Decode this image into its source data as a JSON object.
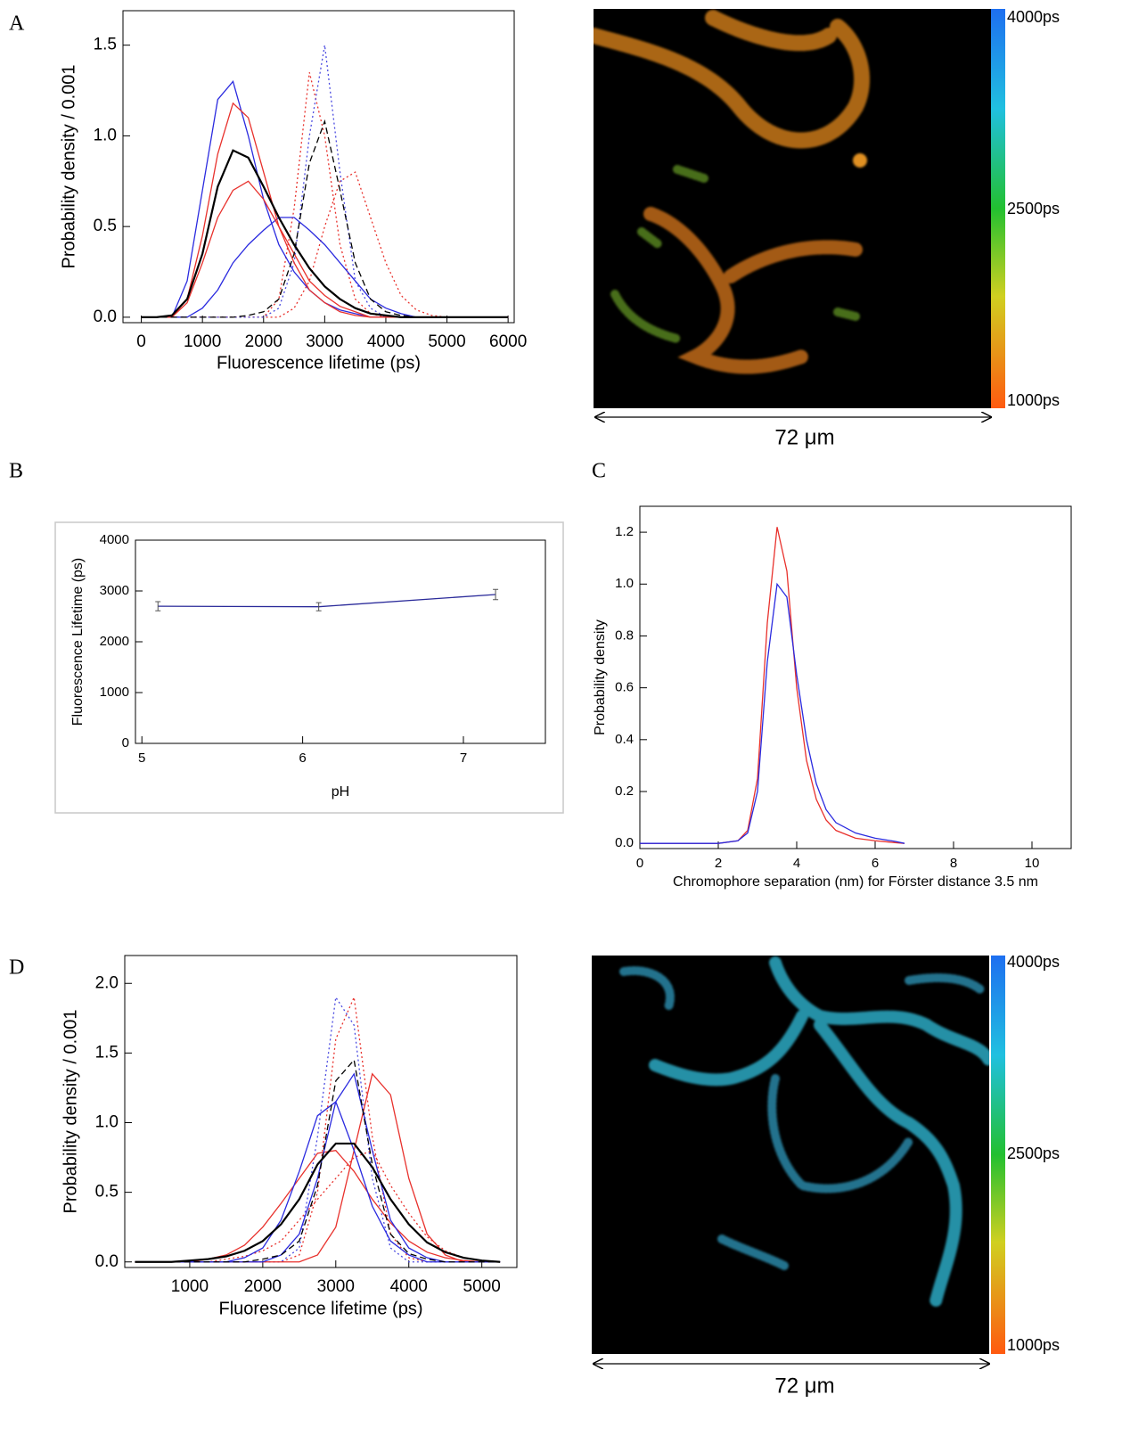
{
  "panel_labels": [
    "A",
    "B",
    "C",
    "D"
  ],
  "chart_data": [
    {
      "type": "line",
      "xlabel": "Fluorescence lifetime (ps)",
      "ylabel": "Probability density / 0.001",
      "xlim": [
        -300,
        6100
      ],
      "ylim": [
        -0.03,
        1.69
      ],
      "xticks": [
        0,
        1000,
        2000,
        3000,
        4000,
        5000,
        6000
      ],
      "yticks": [
        {
          "value": 0,
          "label": "0.0"
        },
        {
          "value": 0.5,
          "label": "0.5"
        },
        {
          "value": 1,
          "label": "1.0"
        },
        {
          "value": 1.5,
          "label": "1.5"
        }
      ],
      "x": [
        0,
        250,
        500,
        750,
        1000,
        1250,
        1500,
        1750,
        2000,
        2250,
        2500,
        2750,
        3000,
        3250,
        3500,
        3750,
        4000,
        4250,
        4500,
        4750,
        5000,
        5250,
        5500,
        5750,
        6000
      ],
      "series": [
        {
          "color": "#e8312c",
          "style": "dotted",
          "values": [
            0,
            0,
            0,
            0,
            0,
            0,
            0,
            0,
            0,
            0,
            0.05,
            0.2,
            0.5,
            0.75,
            0.8,
            0.55,
            0.3,
            0.12,
            0.04,
            0.01,
            0,
            0,
            0,
            0,
            0
          ]
        },
        {
          "color": "#e8312c",
          "style": "dotted",
          "values": [
            0,
            0,
            0,
            0,
            0,
            0,
            0,
            0,
            0,
            0.1,
            0.6,
            1.35,
            1.0,
            0.4,
            0.1,
            0.02,
            0,
            0,
            0,
            0,
            0,
            0,
            0,
            0,
            0
          ]
        },
        {
          "color": "#4a4ae0",
          "style": "dotted",
          "values": [
            0,
            0,
            0,
            0,
            0,
            0,
            0,
            0,
            0,
            0.05,
            0.3,
            1.0,
            1.5,
            0.8,
            0.2,
            0.05,
            0,
            0,
            0,
            0,
            0,
            0,
            0,
            0,
            0
          ]
        },
        {
          "color": "#2a2adf",
          "style": "solid",
          "values": [
            0,
            0,
            0,
            0,
            0.05,
            0.15,
            0.3,
            0.4,
            0.48,
            0.55,
            0.55,
            0.48,
            0.4,
            0.3,
            0.2,
            0.1,
            0.05,
            0.02,
            0,
            0,
            0,
            0,
            0,
            0,
            0
          ]
        },
        {
          "color": "#2a2adf",
          "style": "solid",
          "values": [
            0,
            0,
            0,
            0.2,
            0.7,
            1.2,
            1.3,
            1.0,
            0.65,
            0.4,
            0.25,
            0.15,
            0.08,
            0.04,
            0.02,
            0,
            0,
            0,
            0,
            0,
            0,
            0,
            0,
            0,
            0
          ]
        },
        {
          "color": "#e8312c",
          "style": "solid",
          "values": [
            0,
            0,
            0,
            0.1,
            0.45,
            0.9,
            1.18,
            1.1,
            0.8,
            0.5,
            0.3,
            0.15,
            0.08,
            0.03,
            0.01,
            0,
            0,
            0,
            0,
            0,
            0,
            0,
            0,
            0,
            0
          ]
        },
        {
          "color": "#e8312c",
          "style": "solid",
          "values": [
            0,
            0,
            0,
            0.08,
            0.3,
            0.55,
            0.7,
            0.75,
            0.65,
            0.5,
            0.35,
            0.2,
            0.12,
            0.06,
            0.03,
            0,
            0,
            0,
            0,
            0,
            0,
            0,
            0,
            0,
            0
          ]
        },
        {
          "color": "#000000",
          "style": "dashed",
          "values": [
            0,
            0,
            0,
            0,
            0,
            0,
            0,
            0.01,
            0.03,
            0.1,
            0.35,
            0.85,
            1.08,
            0.7,
            0.3,
            0.1,
            0.03,
            0.01,
            0,
            0,
            0,
            0,
            0,
            0,
            0
          ]
        },
        {
          "color": "#000000",
          "style": "solid",
          "values": [
            0,
            0,
            0.01,
            0.1,
            0.35,
            0.72,
            0.92,
            0.88,
            0.72,
            0.55,
            0.4,
            0.27,
            0.17,
            0.1,
            0.05,
            0.02,
            0.01,
            0,
            0,
            0,
            0,
            0,
            0,
            0,
            0
          ]
        }
      ]
    },
    {
      "type": "line",
      "xlabel": "pH",
      "ylabel": "Fluorescence Lifetime (ps)",
      "xlim": [
        4.96,
        7.51
      ],
      "ylim": [
        0,
        4000
      ],
      "xticks": [
        5,
        6,
        7
      ],
      "yticks": [
        0,
        1000,
        2000,
        3000,
        4000
      ],
      "x": [
        5.1,
        6.1,
        7.2
      ],
      "series": [
        {
          "color": "#2b2b9a",
          "style": "solid",
          "values": [
            2700,
            2690,
            2930
          ],
          "errors": [
            90,
            80,
            100
          ]
        }
      ]
    },
    {
      "type": "line",
      "xlabel": "Chromophore separation (nm) for Förster distance 3.5 nm",
      "ylabel": "Probability density",
      "xlim": [
        0,
        11
      ],
      "ylim": [
        -0.02,
        1.3
      ],
      "xticks": [
        0,
        2,
        4,
        6,
        8,
        10
      ],
      "yticks": [
        {
          "value": 0,
          "label": "0.0"
        },
        {
          "value": 0.2,
          "label": "0.2"
        },
        {
          "value": 0.4,
          "label": "0.4"
        },
        {
          "value": 0.6,
          "label": "0.6"
        },
        {
          "value": 0.8,
          "label": "0.8"
        },
        {
          "value": 1,
          "label": "1.0"
        },
        {
          "value": 1.2,
          "label": "1.2"
        }
      ],
      "x": [
        0,
        2,
        2.5,
        2.75,
        3,
        3.25,
        3.5,
        3.75,
        4,
        4.25,
        4.5,
        4.75,
        5,
        5.5,
        6,
        6.5,
        6.75
      ],
      "series": [
        {
          "color": "#e8312c",
          "style": "solid",
          "values": [
            0,
            0,
            0.01,
            0.05,
            0.25,
            0.85,
            1.22,
            1.05,
            0.6,
            0.32,
            0.17,
            0.09,
            0.05,
            0.02,
            0.01,
            0.003,
            0
          ]
        },
        {
          "color": "#2a2adf",
          "style": "solid",
          "values": [
            0,
            0,
            0.01,
            0.04,
            0.2,
            0.7,
            1.0,
            0.95,
            0.65,
            0.4,
            0.23,
            0.13,
            0.08,
            0.04,
            0.02,
            0.008,
            0
          ]
        }
      ]
    },
    {
      "type": "line",
      "xlabel": "Fluorescence lifetime (ps)",
      "ylabel": "Probability density / 0.001",
      "xlim": [
        110,
        5480
      ],
      "ylim": [
        -0.04,
        2.2
      ],
      "xticks": [
        1000,
        2000,
        3000,
        4000,
        5000
      ],
      "yticks": [
        {
          "value": 0,
          "label": "0.0"
        },
        {
          "value": 0.5,
          "label": "0.5"
        },
        {
          "value": 1,
          "label": "1.0"
        },
        {
          "value": 1.5,
          "label": "1.5"
        },
        {
          "value": 2,
          "label": "2.0"
        }
      ],
      "x": [
        250,
        500,
        750,
        1000,
        1250,
        1500,
        1750,
        2000,
        2250,
        2500,
        2750,
        3000,
        3250,
        3500,
        3750,
        4000,
        4250,
        4500,
        4750,
        5000,
        5250
      ],
      "series": [
        {
          "color": "#e8312c",
          "style": "dotted",
          "values": [
            0,
            0,
            0,
            0,
            0,
            0.02,
            0.04,
            0.08,
            0.15,
            0.3,
            0.45,
            0.6,
            0.75,
            0.8,
            0.55,
            0.35,
            0.18,
            0.08,
            0.03,
            0.01,
            0
          ]
        },
        {
          "color": "#e8312c",
          "style": "dotted",
          "values": [
            0,
            0,
            0,
            0,
            0,
            0,
            0,
            0,
            0,
            0.05,
            0.5,
            1.6,
            1.9,
            0.9,
            0.2,
            0.03,
            0,
            0,
            0,
            0,
            0
          ]
        },
        {
          "color": "#4a4ae0",
          "style": "dotted",
          "values": [
            0,
            0,
            0,
            0,
            0,
            0,
            0,
            0,
            0,
            0.1,
            0.9,
            1.9,
            1.7,
            0.6,
            0.1,
            0,
            0,
            0,
            0,
            0,
            0
          ]
        },
        {
          "color": "#e8312c",
          "style": "solid",
          "values": [
            0,
            0,
            0,
            0,
            0,
            0,
            0,
            0,
            0,
            0,
            0.05,
            0.25,
            0.8,
            1.35,
            1.2,
            0.6,
            0.2,
            0.05,
            0,
            0,
            0
          ]
        },
        {
          "color": "#e8312c",
          "style": "solid",
          "values": [
            0,
            0,
            0,
            0,
            0.02,
            0.05,
            0.12,
            0.25,
            0.42,
            0.6,
            0.78,
            0.8,
            0.65,
            0.45,
            0.28,
            0.15,
            0.07,
            0.03,
            0.01,
            0,
            0
          ]
        },
        {
          "color": "#2a2adf",
          "style": "solid",
          "values": [
            0,
            0,
            0,
            0,
            0,
            0,
            0.03,
            0.1,
            0.3,
            0.65,
            1.05,
            1.15,
            0.8,
            0.4,
            0.15,
            0.05,
            0,
            0,
            0,
            0,
            0
          ]
        },
        {
          "color": "#2a2adf",
          "style": "solid",
          "values": [
            0,
            0,
            0,
            0,
            0,
            0,
            0,
            0,
            0.05,
            0.2,
            0.6,
            1.15,
            1.35,
            0.8,
            0.3,
            0.1,
            0.03,
            0,
            0,
            0,
            0
          ]
        },
        {
          "color": "#000000",
          "style": "dashed",
          "values": [
            0,
            0,
            0,
            0,
            0,
            0,
            0,
            0.02,
            0.05,
            0.15,
            0.55,
            1.3,
            1.45,
            0.7,
            0.2,
            0.06,
            0.02,
            0,
            0,
            0,
            0
          ]
        },
        {
          "color": "#000000",
          "style": "solid",
          "values": [
            0,
            0,
            0,
            0.01,
            0.02,
            0.04,
            0.08,
            0.15,
            0.27,
            0.45,
            0.7,
            0.85,
            0.85,
            0.68,
            0.45,
            0.27,
            0.14,
            0.07,
            0.03,
            0.01,
            0
          ]
        }
      ]
    }
  ],
  "images": [
    {
      "scale_label": "72 μm",
      "colorbar_lim": [
        1000,
        4000
      ],
      "colorbar_ticks": [
        {
          "value": 4000,
          "label": "4000ps"
        },
        {
          "value": 2500,
          "label": "2500ps"
        },
        {
          "value": 1000,
          "label": "1000ps"
        }
      ]
    },
    {
      "scale_label": "72 μm",
      "colorbar_lim": [
        1000,
        4000
      ],
      "colorbar_ticks": [
        {
          "value": 4000,
          "label": "4000ps"
        },
        {
          "value": 2500,
          "label": "2500ps"
        },
        {
          "value": 1000,
          "label": "1000ps"
        }
      ]
    }
  ]
}
